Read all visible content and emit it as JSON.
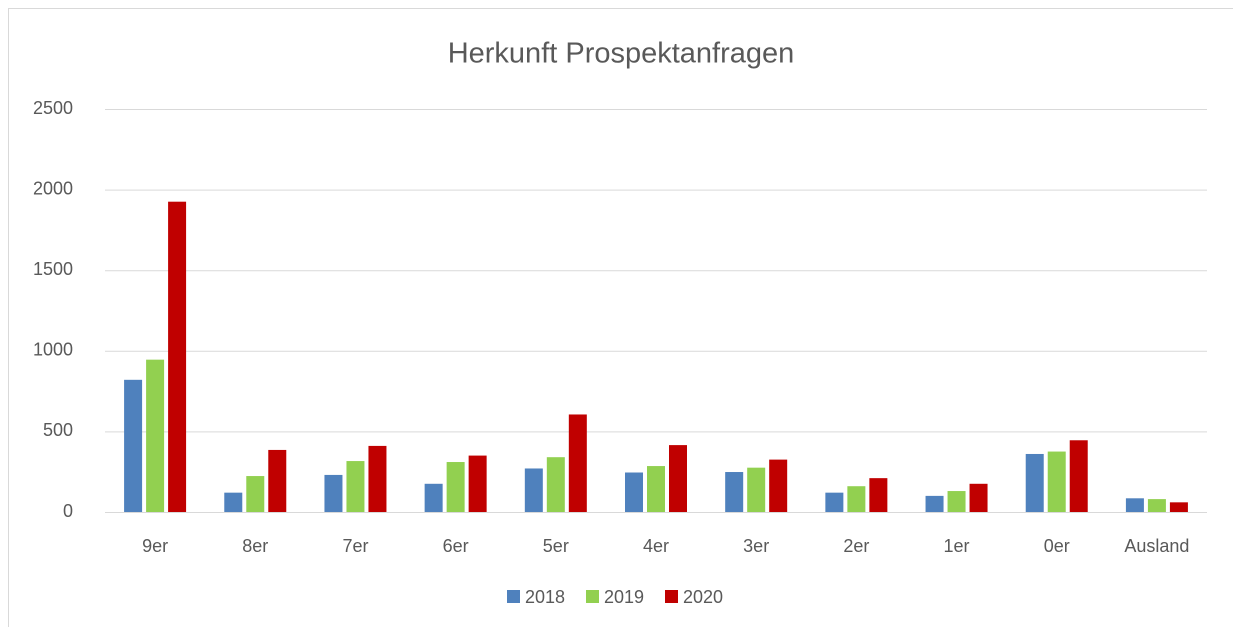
{
  "chart_data": {
    "type": "bar",
    "title": "Herkunft Prospektanfragen",
    "categories": [
      "9er",
      "8er",
      "7er",
      "6er",
      "5er",
      "4er",
      "3er",
      "2er",
      "1er",
      "0er",
      "Ausland"
    ],
    "series": [
      {
        "name": "2018",
        "color": "#4f81bd",
        "values": [
          820,
          120,
          230,
          175,
          270,
          245,
          248,
          120,
          100,
          360,
          85
        ]
      },
      {
        "name": "2019",
        "color": "#92d050",
        "values": [
          945,
          223,
          316,
          310,
          340,
          285,
          275,
          160,
          130,
          375,
          80
        ]
      },
      {
        "name": "2020",
        "color": "#c00000",
        "values": [
          1925,
          385,
          410,
          350,
          605,
          415,
          325,
          210,
          175,
          445,
          60
        ]
      }
    ],
    "ylim": [
      0,
      2500
    ],
    "yticks": [
      0,
      500,
      1000,
      1500,
      2000,
      2500
    ],
    "grid": true,
    "legend": "bottom"
  }
}
